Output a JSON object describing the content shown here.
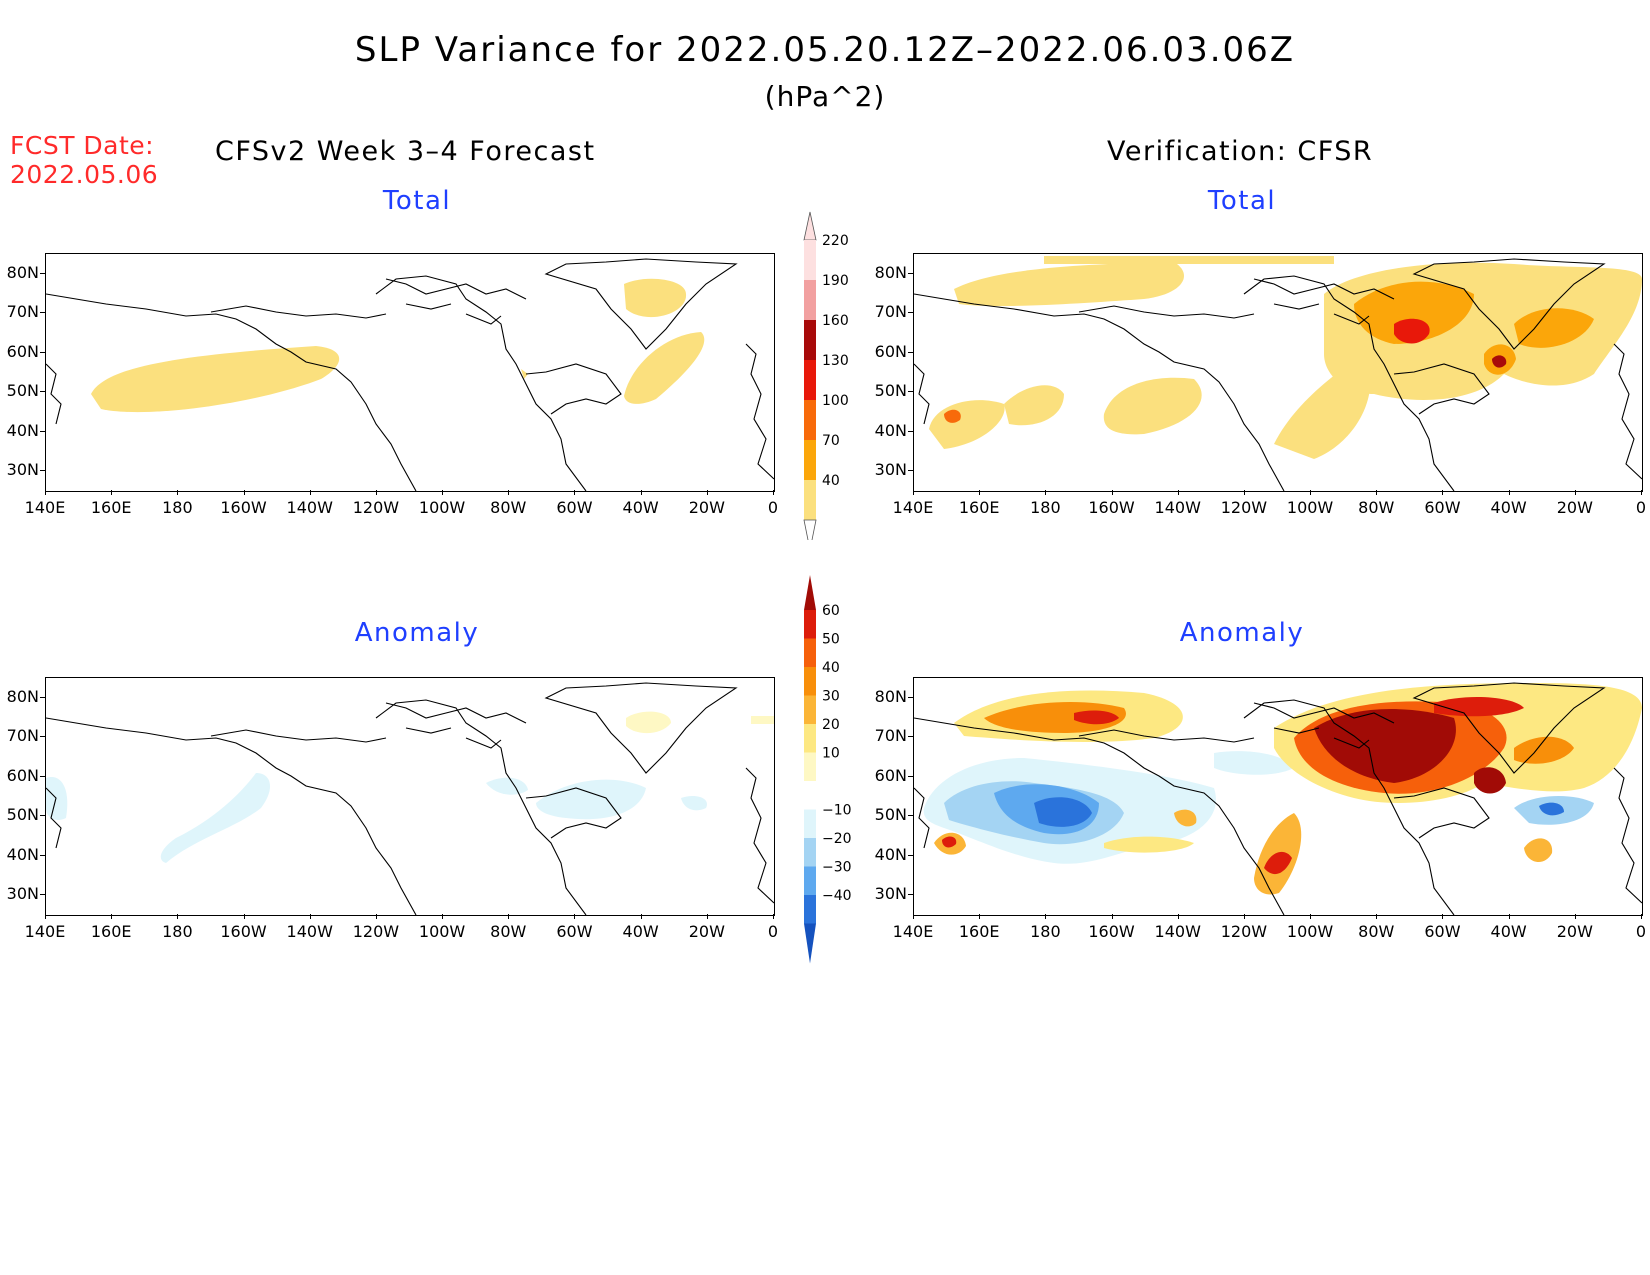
{
  "title": "SLP Variance for 2022.05.20.12Z–2022.06.03.06Z",
  "units": "(hPa^2)",
  "fcst_date_label": "FCST Date:",
  "fcst_date": "2022.05.06",
  "left_header": "CFSv2 Week 3–4 Forecast",
  "right_header": "Verification: CFSR",
  "panel_titles": {
    "forecast_total": "Total",
    "verification_total": "Total",
    "forecast_anomaly": "Anomaly",
    "verification_anomaly": "Anomaly"
  },
  "axes": {
    "lat_labels": [
      "80N",
      "70N",
      "60N",
      "50N",
      "40N",
      "30N"
    ],
    "lon_labels": [
      "140E",
      "160E",
      "180",
      "160W",
      "140W",
      "120W",
      "100W",
      "80W",
      "60W",
      "40W",
      "20W",
      "0"
    ],
    "lon_range_deg": [
      140,
      360
    ],
    "lat_range_deg": [
      25,
      85
    ]
  },
  "colorbars": {
    "total": {
      "levels": [
        "40",
        "70",
        "100",
        "130",
        "160",
        "190",
        "220"
      ],
      "colors": [
        "#fbe07e",
        "#fba60a",
        "#f86a0a",
        "#e8180a",
        "#a80a0a",
        "#f2a0a0",
        "#fde0e0"
      ]
    },
    "anomaly": {
      "levels": [
        "60",
        "50",
        "40",
        "30",
        "20",
        "10",
        "−10",
        "−20",
        "−30",
        "−40"
      ],
      "colors_top_to_bottom": [
        "#a10b06",
        "#dd1d0b",
        "#f6600b",
        "#f88f0a",
        "#fbb537",
        "#fde882",
        "#fef8c4",
        "#ffffff",
        "#dff5fb",
        "#a4d4f3",
        "#5ea9ef",
        "#2a73db",
        "#1552be"
      ]
    }
  },
  "map_legend": {
    "land_outline": "coastlines"
  }
}
